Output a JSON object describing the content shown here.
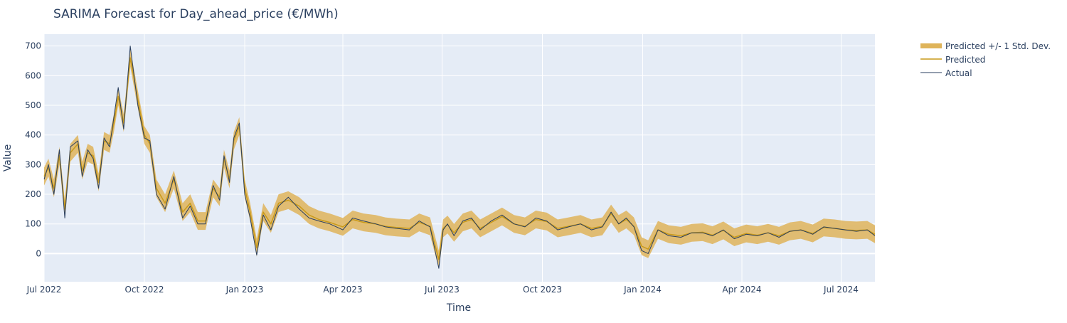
{
  "chart_data": {
    "type": "line",
    "title": "SARIMA Forecast for Day_ahead_price (€/MWh)",
    "xlabel": "Time",
    "ylabel": "Value",
    "xlim": [
      "2022-07-01",
      "2024-08-01"
    ],
    "ylim": [
      -95,
      740
    ],
    "x_ticks": [
      "Jul 2022",
      "Oct 2022",
      "Jan 2023",
      "Apr 2023",
      "Jul 2023",
      "Oct 2023",
      "Jan 2024",
      "Apr 2024",
      "Jul 2024"
    ],
    "x_tick_dates": [
      "2022-07-01",
      "2022-10-01",
      "2023-01-01",
      "2023-04-01",
      "2023-07-01",
      "2023-10-01",
      "2024-01-01",
      "2024-04-01",
      "2024-07-01"
    ],
    "y_ticks": [
      "0",
      "100",
      "200",
      "300",
      "400",
      "500",
      "600",
      "700"
    ],
    "y_tick_values": [
      0,
      100,
      200,
      300,
      400,
      500,
      600,
      700
    ],
    "grid": true,
    "legend_position": "top-right, outside plot",
    "band_std": 30,
    "series": [
      {
        "name": "Actual",
        "color": "#2a3f5f",
        "x": [
          "2022-07-01",
          "2022-07-05",
          "2022-07-10",
          "2022-07-15",
          "2022-07-20",
          "2022-07-25",
          "2022-08-01",
          "2022-08-05",
          "2022-08-10",
          "2022-08-15",
          "2022-08-20",
          "2022-08-25",
          "2022-08-30",
          "2022-09-03",
          "2022-09-07",
          "2022-09-12",
          "2022-09-18",
          "2022-09-25",
          "2022-10-01",
          "2022-10-06",
          "2022-10-12",
          "2022-10-20",
          "2022-10-28",
          "2022-11-05",
          "2022-11-12",
          "2022-11-19",
          "2022-11-26",
          "2022-12-03",
          "2022-12-09",
          "2022-12-13",
          "2022-12-18",
          "2022-12-22",
          "2022-12-27",
          "2023-01-01",
          "2023-01-06",
          "2023-01-12",
          "2023-01-18",
          "2023-01-25",
          "2023-02-01",
          "2023-02-10",
          "2023-02-20",
          "2023-03-01",
          "2023-03-10",
          "2023-03-20",
          "2023-04-01",
          "2023-04-10",
          "2023-04-20",
          "2023-05-01",
          "2023-05-10",
          "2023-05-20",
          "2023-06-01",
          "2023-06-10",
          "2023-06-20",
          "2023-06-28",
          "2023-07-02",
          "2023-07-06",
          "2023-07-12",
          "2023-07-20",
          "2023-07-28",
          "2023-08-05",
          "2023-08-15",
          "2023-08-25",
          "2023-09-05",
          "2023-09-15",
          "2023-09-25",
          "2023-10-05",
          "2023-10-15",
          "2023-10-25",
          "2023-11-05",
          "2023-11-15",
          "2023-11-25",
          "2023-12-03",
          "2023-12-10",
          "2023-12-17",
          "2023-12-24",
          "2023-12-31",
          "2024-01-06",
          "2024-01-15",
          "2024-01-25",
          "2024-02-05",
          "2024-02-15",
          "2024-02-25",
          "2024-03-05",
          "2024-03-15",
          "2024-03-25",
          "2024-04-05",
          "2024-04-15",
          "2024-04-25",
          "2024-05-05",
          "2024-05-15",
          "2024-05-25",
          "2024-06-05",
          "2024-06-15",
          "2024-06-25",
          "2024-07-05",
          "2024-07-15",
          "2024-07-25",
          "2024-08-01"
        ],
        "values": [
          250,
          300,
          200,
          350,
          120,
          360,
          380,
          260,
          350,
          320,
          220,
          390,
          360,
          460,
          560,
          420,
          700,
          500,
          390,
          380,
          200,
          150,
          260,
          120,
          160,
          100,
          100,
          230,
          180,
          330,
          240,
          390,
          440,
          200,
          120,
          -5,
          130,
          80,
          160,
          190,
          150,
          120,
          110,
          100,
          80,
          120,
          110,
          100,
          90,
          85,
          80,
          110,
          90,
          -50,
          80,
          100,
          60,
          110,
          120,
          80,
          110,
          130,
          100,
          90,
          120,
          110,
          80,
          90,
          100,
          80,
          90,
          140,
          100,
          120,
          90,
          10,
          0,
          80,
          60,
          55,
          70,
          70,
          60,
          80,
          50,
          65,
          60,
          70,
          55,
          75,
          80,
          65,
          90,
          85,
          80,
          75,
          80,
          60
        ]
      },
      {
        "name": "Predicted",
        "color": "#c99a1a",
        "x": [
          "2022-07-01",
          "2022-07-05",
          "2022-07-10",
          "2022-07-15",
          "2022-07-20",
          "2022-07-25",
          "2022-08-01",
          "2022-08-05",
          "2022-08-10",
          "2022-08-15",
          "2022-08-20",
          "2022-08-25",
          "2022-08-30",
          "2022-09-03",
          "2022-09-07",
          "2022-09-12",
          "2022-09-18",
          "2022-09-25",
          "2022-10-01",
          "2022-10-06",
          "2022-10-12",
          "2022-10-20",
          "2022-10-28",
          "2022-11-05",
          "2022-11-12",
          "2022-11-19",
          "2022-11-26",
          "2022-12-03",
          "2022-12-09",
          "2022-12-13",
          "2022-12-18",
          "2022-12-22",
          "2022-12-27",
          "2023-01-01",
          "2023-01-06",
          "2023-01-12",
          "2023-01-18",
          "2023-01-25",
          "2023-02-01",
          "2023-02-10",
          "2023-02-20",
          "2023-03-01",
          "2023-03-10",
          "2023-03-20",
          "2023-04-01",
          "2023-04-10",
          "2023-04-20",
          "2023-05-01",
          "2023-05-10",
          "2023-05-20",
          "2023-06-01",
          "2023-06-10",
          "2023-06-20",
          "2023-06-28",
          "2023-07-02",
          "2023-07-06",
          "2023-07-12",
          "2023-07-20",
          "2023-07-28",
          "2023-08-05",
          "2023-08-15",
          "2023-08-25",
          "2023-09-05",
          "2023-09-15",
          "2023-09-25",
          "2023-10-05",
          "2023-10-15",
          "2023-10-25",
          "2023-11-05",
          "2023-11-15",
          "2023-11-25",
          "2023-12-03",
          "2023-12-10",
          "2023-12-17",
          "2023-12-24",
          "2023-12-31",
          "2024-01-06",
          "2024-01-15",
          "2024-01-25",
          "2024-02-05",
          "2024-02-15",
          "2024-02-25",
          "2024-03-05",
          "2024-03-15",
          "2024-03-25",
          "2024-04-05",
          "2024-04-15",
          "2024-04-25",
          "2024-05-05",
          "2024-05-15",
          "2024-05-25",
          "2024-06-05",
          "2024-06-15",
          "2024-06-25",
          "2024-07-05",
          "2024-07-15",
          "2024-07-25",
          "2024-08-01"
        ],
        "values": [
          260,
          290,
          220,
          330,
          150,
          340,
          370,
          280,
          340,
          330,
          240,
          380,
          370,
          440,
          530,
          440,
          660,
          520,
          400,
          370,
          220,
          170,
          250,
          140,
          170,
          110,
          110,
          220,
          190,
          320,
          250,
          380,
          430,
          220,
          140,
          20,
          140,
          100,
          170,
          180,
          160,
          130,
          115,
          105,
          90,
          115,
          105,
          100,
          92,
          88,
          85,
          105,
          92,
          -20,
          85,
          98,
          70,
          105,
          115,
          85,
          105,
          125,
          100,
          92,
          115,
          108,
          85,
          92,
          100,
          85,
          92,
          135,
          100,
          115,
          92,
          25,
          15,
          80,
          65,
          60,
          70,
          72,
          62,
          78,
          55,
          68,
          62,
          70,
          60,
          75,
          80,
          68,
          88,
          85,
          80,
          78,
          80,
          65
        ]
      }
    ],
    "band_name": "Predicted +/- 1 Std. Dev.",
    "band_color": "#dfb45a"
  }
}
